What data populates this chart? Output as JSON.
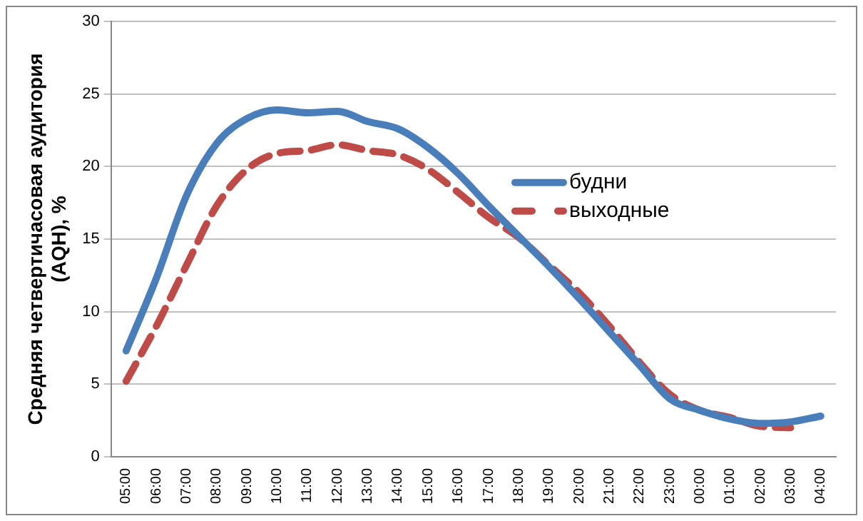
{
  "chart_data": {
    "type": "line",
    "ylabel": "Средняя четвертичасовая аудитория (AQH), %",
    "categories": [
      "05:00",
      "06:00",
      "07:00",
      "08:00",
      "09:00",
      "10:00",
      "11:00",
      "12:00",
      "13:00",
      "14:00",
      "15:00",
      "16:00",
      "17:00",
      "18:00",
      "19:00",
      "20:00",
      "21:00",
      "22:00",
      "23:00",
      "00:00",
      "01:00",
      "02:00",
      "03:00",
      "04:00"
    ],
    "series": [
      {
        "name": "будни",
        "color": "#4a7ebb",
        "line_style": "solid",
        "values": [
          7.3,
          12.3,
          18,
          21.6,
          23.3,
          23.9,
          23.7,
          23.8,
          23.1,
          22.6,
          21.3,
          19.5,
          17.3,
          15.2,
          13.1,
          10.9,
          8.6,
          6.3,
          4,
          3.2,
          2.6,
          2.3,
          2.4,
          2.8
        ]
      },
      {
        "name": "выходные",
        "color": "#be4b48",
        "line_style": "dashed",
        "values": [
          5.2,
          9,
          13.2,
          17.3,
          19.8,
          20.9,
          21.1,
          21.5,
          21.1,
          20.8,
          19.8,
          18.2,
          16.5,
          15.1,
          13.2,
          11.3,
          9,
          6.5,
          4.3,
          3.2,
          2.7,
          2.1,
          2,
          null
        ]
      }
    ],
    "ylim": [
      0,
      30
    ],
    "yticks": [
      0,
      5,
      10,
      15,
      20,
      25,
      30
    ],
    "grid": "y",
    "legend": "right",
    "marker": "none"
  }
}
